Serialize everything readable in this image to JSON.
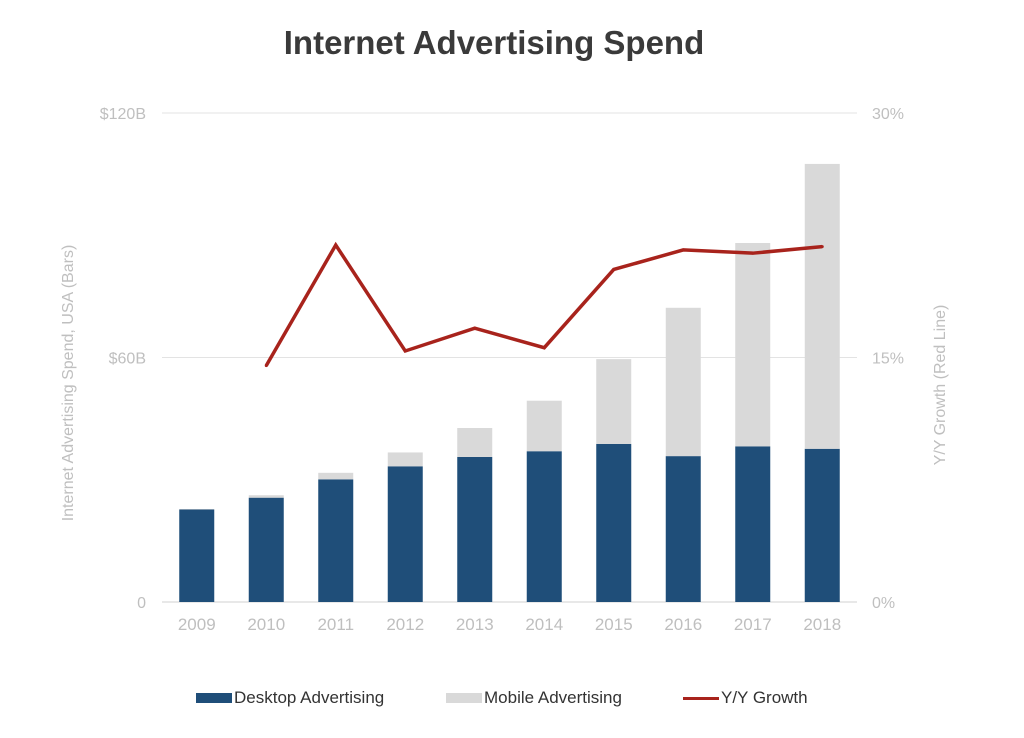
{
  "colors": {
    "desktop": "#1f4e79",
    "mobile": "#d9d9d9",
    "growth": "#a8231c",
    "gridline": "#e3e3e3",
    "axis_text": "#bfbfbf",
    "title": "#3a3a3a"
  },
  "chart_data": {
    "type": "bar",
    "title": "Internet Advertising Spend",
    "categories": [
      "2009",
      "2010",
      "2011",
      "2012",
      "2013",
      "2014",
      "2015",
      "2016",
      "2017",
      "2018"
    ],
    "series": [
      {
        "name": "Desktop Advertising",
        "kind": "stacked-bar",
        "axis": "left",
        "values": [
          22.7,
          25.6,
          30.1,
          33.3,
          35.6,
          37.0,
          38.8,
          35.8,
          38.2,
          37.6
        ]
      },
      {
        "name": "Mobile Advertising",
        "kind": "stacked-bar",
        "axis": "left",
        "values": [
          0.1,
          0.6,
          1.6,
          3.4,
          7.1,
          12.4,
          20.8,
          36.4,
          49.9,
          69.9
        ]
      },
      {
        "name": "Y/Y Growth",
        "kind": "line",
        "axis": "right",
        "values": [
          null,
          14.5,
          21.9,
          15.4,
          16.8,
          15.6,
          20.4,
          21.6,
          21.4,
          21.8
        ]
      }
    ],
    "ylabel": "Internet Advertising Spend, USA (Bars)",
    "y2label": "Y/Y Growth (Red Line)",
    "ylim": [
      0,
      120
    ],
    "y2lim": [
      0,
      30
    ],
    "yticks": [
      {
        "value": 0,
        "label": "0"
      },
      {
        "value": 60,
        "label": "$60B"
      },
      {
        "value": 120,
        "label": "$120B"
      }
    ],
    "y2ticks": [
      {
        "value": 0,
        "label": "0%"
      },
      {
        "value": 15,
        "label": "15%"
      },
      {
        "value": 30,
        "label": "30%"
      }
    ],
    "grid": true,
    "legend_position": "bottom"
  }
}
